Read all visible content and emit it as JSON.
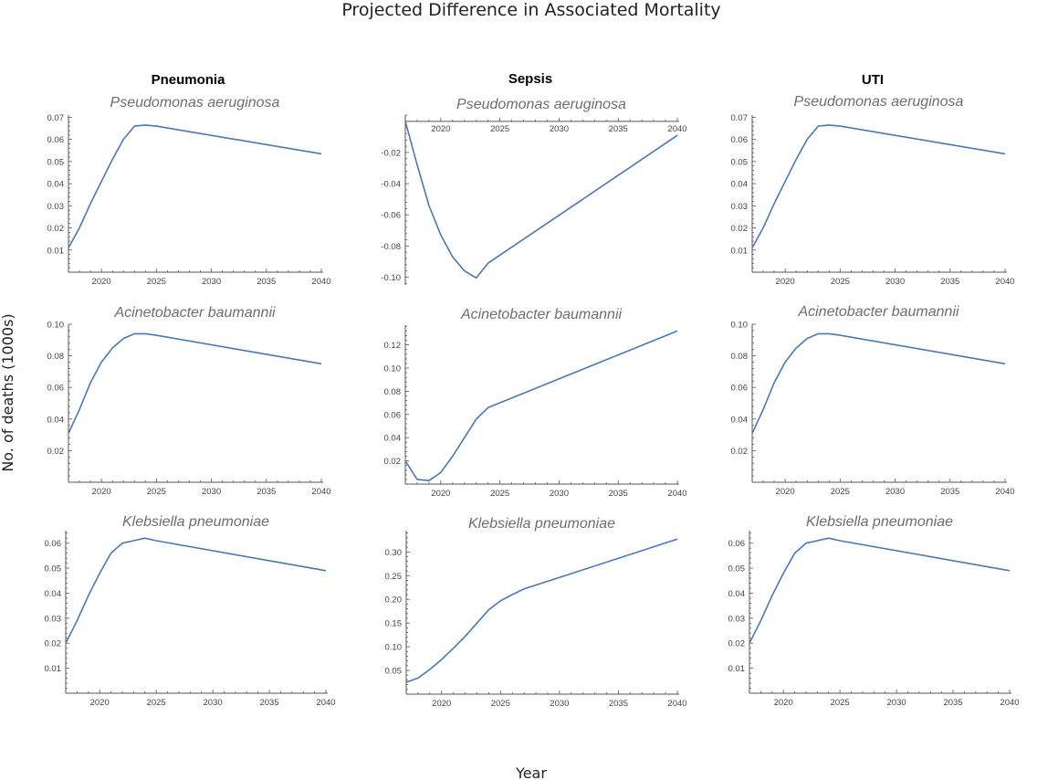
{
  "title": "Projected Difference in Associated Mortality",
  "ylabel": "No. of deaths (1000s)",
  "xlabel": "Year",
  "columns": [
    "Pneumonia",
    "Sepsis",
    "UTI"
  ],
  "colors": {
    "series": "#4a78b5",
    "axis": "#555555"
  },
  "chart_data": [
    {
      "type": "line",
      "column": "Pneumonia",
      "title": "Pseudomonas aeruginosa",
      "xlim": [
        2017,
        2040
      ],
      "ylim": [
        0,
        0.071
      ],
      "xticks": [
        2020,
        2025,
        2030,
        2035,
        2040
      ],
      "yticks": [
        0.01,
        0.02,
        0.03,
        0.04,
        0.05,
        0.06,
        0.07
      ],
      "ytick_labels": [
        "0.01",
        "0.02",
        "0.03",
        "0.04",
        "0.05",
        "0.06",
        "0.07"
      ],
      "x": [
        2017,
        2018,
        2019,
        2020,
        2021,
        2022,
        2023,
        2024,
        2025,
        2040
      ],
      "y": [
        0.011,
        0.02,
        0.031,
        0.041,
        0.051,
        0.06,
        0.066,
        0.0665,
        0.066,
        0.0535
      ]
    },
    {
      "type": "line",
      "column": "Pneumonia",
      "title": "Acinetobacter baumannii",
      "xlim": [
        2017,
        2040
      ],
      "ylim": [
        0,
        0.1
      ],
      "xticks": [
        2020,
        2025,
        2030,
        2035,
        2040
      ],
      "yticks": [
        0.02,
        0.04,
        0.06,
        0.08,
        0.1
      ],
      "ytick_labels": [
        "0.02",
        "0.04",
        "0.06",
        "0.08",
        "0.10"
      ],
      "x": [
        2017,
        2018,
        2019,
        2020,
        2021,
        2022,
        2023,
        2024,
        2025,
        2040
      ],
      "y": [
        0.031,
        0.046,
        0.063,
        0.076,
        0.085,
        0.091,
        0.094,
        0.094,
        0.093,
        0.075
      ]
    },
    {
      "type": "line",
      "column": "Pneumonia",
      "title": "Klebsiella pneumoniae",
      "xlim": [
        2017,
        2040
      ],
      "ylim": [
        0,
        0.065
      ],
      "xticks": [
        2020,
        2025,
        2030,
        2035,
        2040
      ],
      "yticks": [
        0.01,
        0.02,
        0.03,
        0.04,
        0.05,
        0.06
      ],
      "ytick_labels": [
        "0.01",
        "0.02",
        "0.03",
        "0.04",
        "0.05",
        "0.06"
      ],
      "x": [
        2017,
        2018,
        2019,
        2020,
        2021,
        2022,
        2023,
        2024,
        2025,
        2040
      ],
      "y": [
        0.02,
        0.029,
        0.039,
        0.048,
        0.056,
        0.06,
        0.061,
        0.062,
        0.061,
        0.049
      ]
    },
    {
      "type": "line",
      "column": "Sepsis",
      "title": "Pseudomonas aeruginosa",
      "xlim": [
        2017,
        2040
      ],
      "ylim": [
        -0.105,
        0.004
      ],
      "xticks": [
        2020,
        2025,
        2030,
        2035,
        2040
      ],
      "yticks": [
        -0.02,
        -0.04,
        -0.06,
        -0.08,
        -0.1
      ],
      "ytick_labels": [
        "-0.02",
        "-0.04",
        "-0.06",
        "-0.08",
        "-0.10"
      ],
      "x_axis_at": 0,
      "x": [
        2017,
        2018,
        2019,
        2020,
        2021,
        2022,
        2023,
        2024,
        2040
      ],
      "y": [
        0.0,
        -0.028,
        -0.054,
        -0.073,
        -0.087,
        -0.096,
        -0.1005,
        -0.091,
        -0.009
      ]
    },
    {
      "type": "line",
      "column": "Sepsis",
      "title": "Acinetobacter baumannii",
      "xlim": [
        2017,
        2040
      ],
      "ylim": [
        0,
        0.137
      ],
      "xticks": [
        2020,
        2025,
        2030,
        2035,
        2040
      ],
      "yticks": [
        0.02,
        0.04,
        0.06,
        0.08,
        0.1,
        0.12
      ],
      "ytick_labels": [
        "0.02",
        "0.04",
        "0.06",
        "0.08",
        "0.10",
        "0.12"
      ],
      "x": [
        2017,
        2018,
        2019,
        2020,
        2021,
        2022,
        2023,
        2024,
        2040
      ],
      "y": [
        0.02,
        0.004,
        0.003,
        0.01,
        0.024,
        0.04,
        0.056,
        0.066,
        0.132
      ]
    },
    {
      "type": "line",
      "column": "Sepsis",
      "title": "Klebsiella pneumoniae",
      "xlim": [
        2017,
        2040
      ],
      "ylim": [
        0,
        0.345
      ],
      "xticks": [
        2020,
        2025,
        2030,
        2035,
        2040
      ],
      "yticks": [
        0.05,
        0.1,
        0.15,
        0.2,
        0.25,
        0.3
      ],
      "ytick_labels": [
        "0.05",
        "0.10",
        "0.15",
        "0.20",
        "0.25",
        "0.30"
      ],
      "x": [
        2017,
        2018,
        2019,
        2020,
        2021,
        2022,
        2023,
        2024,
        2025,
        2026,
        2027,
        2040
      ],
      "y": [
        0.025,
        0.034,
        0.052,
        0.073,
        0.097,
        0.122,
        0.15,
        0.178,
        0.197,
        0.21,
        0.222,
        0.327
      ]
    },
    {
      "type": "line",
      "column": "UTI",
      "title": "Pseudomonas aeruginosa",
      "xlim": [
        2017,
        2040
      ],
      "ylim": [
        0,
        0.071
      ],
      "xticks": [
        2020,
        2025,
        2030,
        2035,
        2040
      ],
      "yticks": [
        0.01,
        0.02,
        0.03,
        0.04,
        0.05,
        0.06,
        0.07
      ],
      "ytick_labels": [
        "0.01",
        "0.02",
        "0.03",
        "0.04",
        "0.05",
        "0.06",
        "0.07"
      ],
      "x": [
        2017,
        2018,
        2019,
        2020,
        2021,
        2022,
        2023,
        2024,
        2025,
        2040
      ],
      "y": [
        0.011,
        0.02,
        0.031,
        0.041,
        0.051,
        0.06,
        0.066,
        0.0665,
        0.066,
        0.0535
      ]
    },
    {
      "type": "line",
      "column": "UTI",
      "title": "Acinetobacter baumannii",
      "xlim": [
        2017,
        2040
      ],
      "ylim": [
        0,
        0.1
      ],
      "xticks": [
        2020,
        2025,
        2030,
        2035,
        2040
      ],
      "yticks": [
        0.02,
        0.04,
        0.06,
        0.08,
        0.1
      ],
      "ytick_labels": [
        "0.02",
        "0.04",
        "0.06",
        "0.08",
        "0.10"
      ],
      "x": [
        2017,
        2018,
        2019,
        2020,
        2021,
        2022,
        2023,
        2024,
        2025,
        2040
      ],
      "y": [
        0.031,
        0.046,
        0.063,
        0.076,
        0.085,
        0.091,
        0.094,
        0.094,
        0.093,
        0.075
      ]
    },
    {
      "type": "line",
      "column": "UTI",
      "title": "Klebsiella pneumoniae",
      "xlim": [
        2017,
        2040
      ],
      "ylim": [
        0,
        0.065
      ],
      "xticks": [
        2020,
        2025,
        2030,
        2035,
        2040
      ],
      "yticks": [
        0.01,
        0.02,
        0.03,
        0.04,
        0.05,
        0.06
      ],
      "ytick_labels": [
        "0.01",
        "0.02",
        "0.03",
        "0.04",
        "0.05",
        "0.06"
      ],
      "x": [
        2017,
        2018,
        2019,
        2020,
        2021,
        2022,
        2023,
        2024,
        2025,
        2040
      ],
      "y": [
        0.02,
        0.029,
        0.039,
        0.048,
        0.056,
        0.06,
        0.061,
        0.062,
        0.061,
        0.049
      ]
    }
  ]
}
